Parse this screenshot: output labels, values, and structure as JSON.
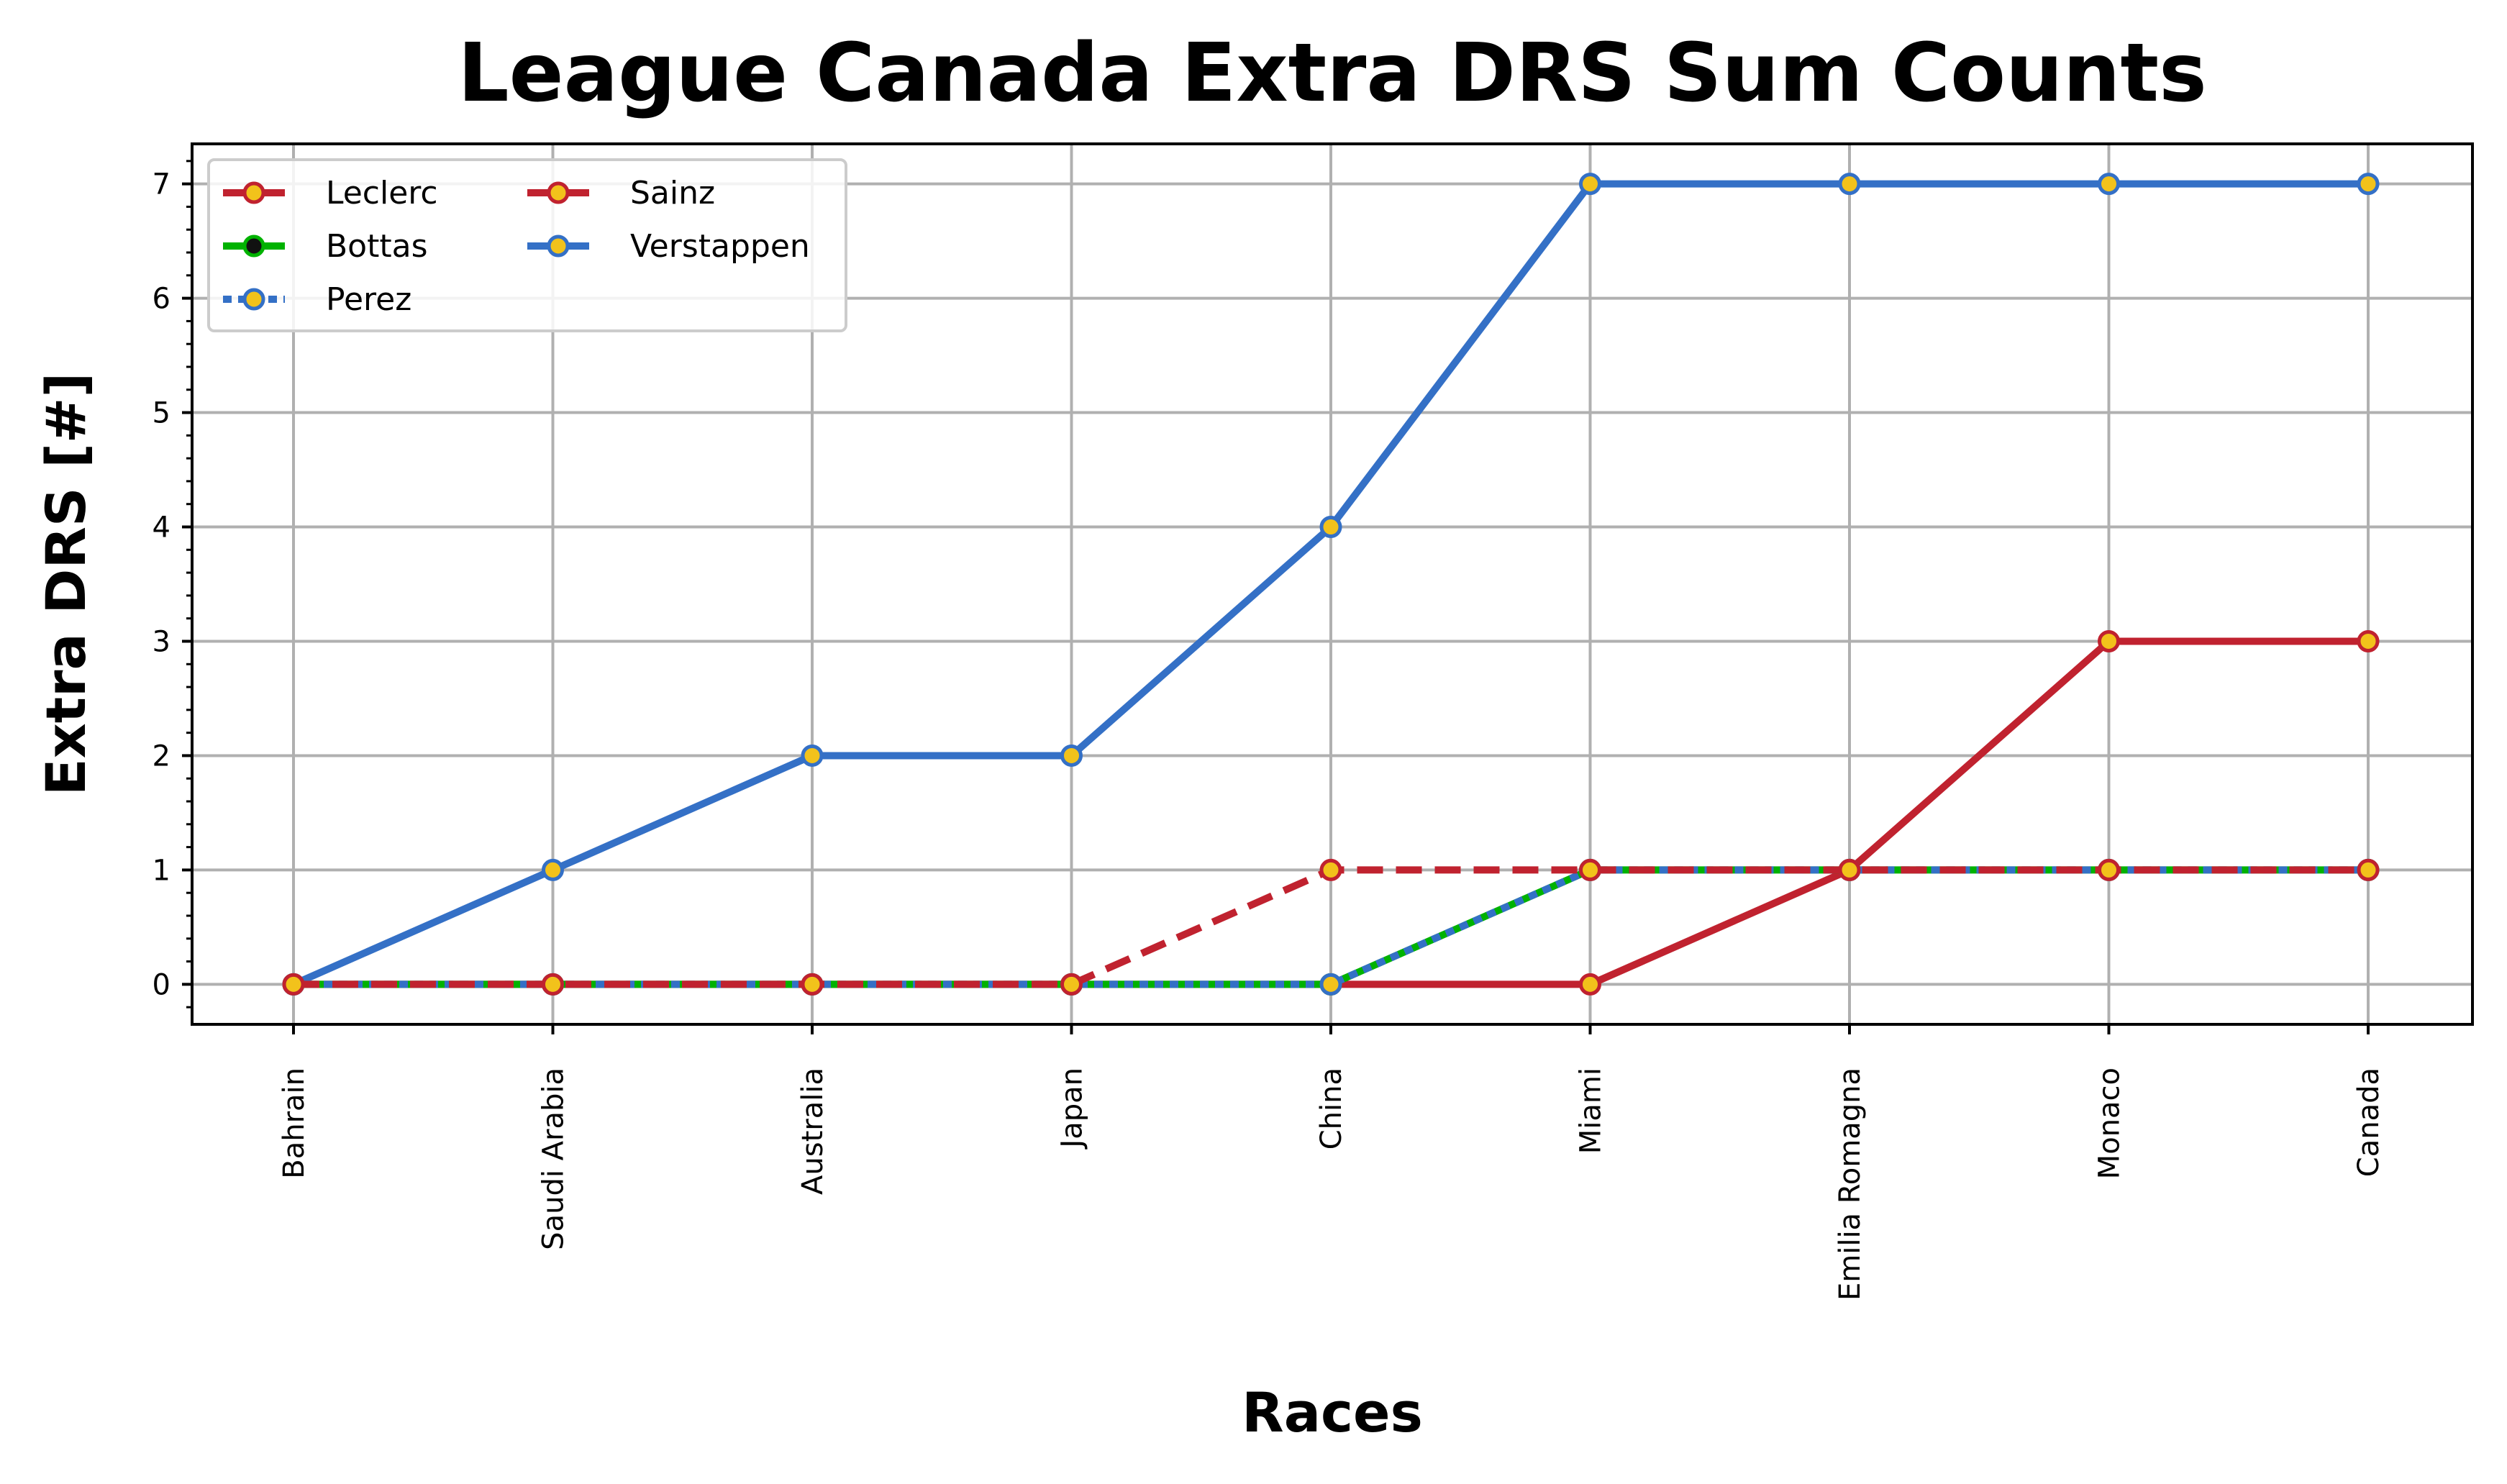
{
  "chart_data": {
    "type": "line",
    "title": "League Canada Extra DRS Sum Counts",
    "xlabel": "Races",
    "ylabel": "Extra DRS [#]",
    "categories": [
      "Bahrain",
      "Saudi Arabia",
      "Australia",
      "Japan",
      "China",
      "Miami",
      "Emilia Romagna",
      "Monaco",
      "Canada"
    ],
    "yticks": [
      0,
      1,
      2,
      3,
      4,
      5,
      6,
      7
    ],
    "ylim": [
      -0.35,
      7.35
    ],
    "grid": true,
    "legend_location": "top-left",
    "series": [
      {
        "name": "Leclerc",
        "values": [
          0,
          0,
          0,
          0,
          0,
          0,
          1,
          3,
          3
        ],
        "color": "#c0222f",
        "style": "solid",
        "marker_face": "#f2c21b",
        "marker_edge": "#c0222f"
      },
      {
        "name": "Bottas",
        "values": [
          0,
          0,
          0,
          0,
          0,
          1,
          1,
          1,
          1
        ],
        "color": "#00b200",
        "style": "solid",
        "marker_face": "#111111",
        "marker_edge": "#00b200"
      },
      {
        "name": "Perez",
        "values": [
          0,
          0,
          0,
          0,
          0,
          1,
          1,
          1,
          1
        ],
        "color": "#3470c6",
        "style": "dotted",
        "marker_face": "#f2c21b",
        "marker_edge": "#3470c6"
      },
      {
        "name": "Sainz",
        "values": [
          0,
          0,
          0,
          0,
          1,
          1,
          1,
          1,
          1
        ],
        "color": "#c0222f",
        "style": "dashed",
        "marker_face": "#f2c21b",
        "marker_edge": "#c0222f"
      },
      {
        "name": "Verstappen",
        "values": [
          0,
          1,
          2,
          2,
          4,
          7,
          7,
          7,
          7
        ],
        "color": "#3470c6",
        "style": "solid",
        "marker_face": "#f2c21b",
        "marker_edge": "#3470c6"
      }
    ]
  }
}
